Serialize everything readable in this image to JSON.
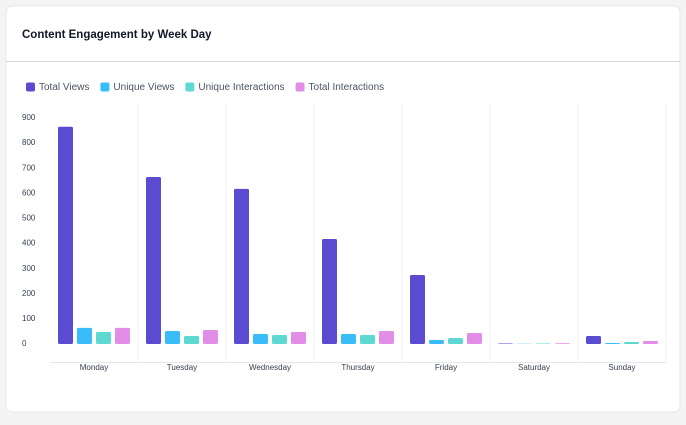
{
  "chart_data": {
    "type": "bar",
    "title": "Content Engagement by Week Day",
    "categories": [
      "Monday",
      "Tuesday",
      "Wednesday",
      "Thursday",
      "Friday",
      "Saturday",
      "Sunday"
    ],
    "series": [
      {
        "name": "Total Views",
        "color": "#5b4bd1",
        "values": [
          865,
          665,
          618,
          418,
          275,
          2,
          32
        ]
      },
      {
        "name": "Unique Views",
        "color": "#38bdf8",
        "values": [
          64,
          52,
          40,
          40,
          16,
          1,
          4
        ]
      },
      {
        "name": "Unique Interactions",
        "color": "#5dd9d1",
        "values": [
          48,
          32,
          36,
          36,
          24,
          2,
          8
        ]
      },
      {
        "name": "Total Interactions",
        "color": "#e28de6",
        "values": [
          64,
          56,
          48,
          52,
          44,
          3,
          12
        ]
      }
    ],
    "ylim": [
      0,
      900
    ],
    "yticks": [
      0,
      100,
      200,
      300,
      400,
      500,
      600,
      700,
      800,
      900
    ]
  }
}
